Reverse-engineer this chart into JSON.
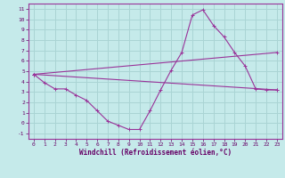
{
  "title": "",
  "xlabel": "Windchill (Refroidissement éolien,°C)",
  "ylabel": "",
  "xlim": [
    -0.5,
    23.5
  ],
  "ylim": [
    -1.5,
    11.5
  ],
  "yticks": [
    -1,
    0,
    1,
    2,
    3,
    4,
    5,
    6,
    7,
    8,
    9,
    10,
    11
  ],
  "xticks": [
    0,
    1,
    2,
    3,
    4,
    5,
    6,
    7,
    8,
    9,
    10,
    11,
    12,
    13,
    14,
    15,
    16,
    17,
    18,
    19,
    20,
    21,
    22,
    23
  ],
  "bg_color": "#c5eaea",
  "grid_color": "#aad4d4",
  "line_color": "#993399",
  "line1_x": [
    0,
    1,
    2,
    3,
    4,
    5,
    6,
    7,
    8,
    9,
    10,
    11,
    12,
    13,
    14,
    15,
    16,
    17,
    18,
    19,
    20,
    21,
    22,
    23
  ],
  "line1_y": [
    4.7,
    3.9,
    3.3,
    3.3,
    2.7,
    2.2,
    1.2,
    0.2,
    -0.2,
    -0.6,
    -0.6,
    1.2,
    3.2,
    5.1,
    6.8,
    10.4,
    10.9,
    9.4,
    8.3,
    6.8,
    5.5,
    3.3,
    3.2,
    3.2
  ],
  "line2_x": [
    0,
    23
  ],
  "line2_y": [
    4.7,
    3.2
  ],
  "line3_x": [
    0,
    23
  ],
  "line3_y": [
    4.7,
    6.8
  ]
}
